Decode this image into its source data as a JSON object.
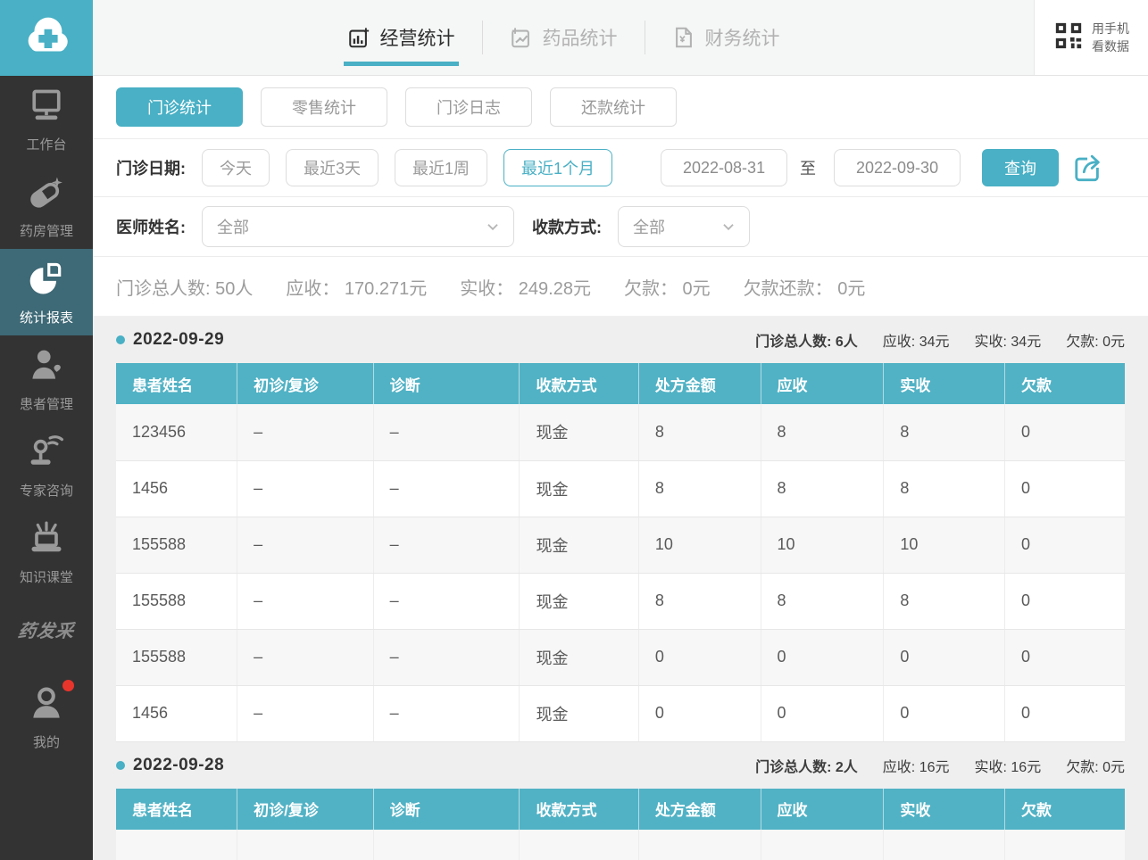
{
  "colors": {
    "accent": "#49b0c5",
    "sidebar_bg": "#333333",
    "sidebar_active_bg": "#3e6976",
    "table_header_bg": "#51b2c5",
    "badge_red": "#e8352c"
  },
  "sidebar": {
    "logo_icon": "cloud-cross",
    "items": [
      {
        "label": "工作台",
        "icon": "workbench",
        "active": false
      },
      {
        "label": "药房管理",
        "icon": "pharmacy",
        "active": false
      },
      {
        "label": "统计报表",
        "icon": "report",
        "active": true
      },
      {
        "label": "患者管理",
        "icon": "patient",
        "active": false
      },
      {
        "label": "专家咨询",
        "icon": "expert",
        "active": false
      },
      {
        "label": "知识课堂",
        "icon": "classroom",
        "active": false
      }
    ],
    "brand": "药发采",
    "profile": {
      "label": "我的",
      "badge": true
    }
  },
  "header": {
    "tabs": [
      {
        "label": "经营统计",
        "icon": "bar-chart",
        "active": true
      },
      {
        "label": "药品统计",
        "icon": "line-chart",
        "active": false
      },
      {
        "label": "财务统计",
        "icon": "finance-doc",
        "active": false
      }
    ],
    "qr_line1": "用手机",
    "qr_line2": "看数据"
  },
  "subtabs": [
    {
      "label": "门诊统计",
      "active": true
    },
    {
      "label": "零售统计",
      "active": false
    },
    {
      "label": "门诊日志",
      "active": false
    },
    {
      "label": "还款统计",
      "active": false
    }
  ],
  "date_filter": {
    "label": "门诊日期:",
    "quick_options": [
      {
        "label": "今天",
        "active": false
      },
      {
        "label": "最近3天",
        "active": false
      },
      {
        "label": "最近1周",
        "active": false
      },
      {
        "label": "最近1个月",
        "active": true
      }
    ],
    "start_date": "2022-08-31",
    "separator": "至",
    "end_date": "2022-09-30",
    "query_label": "查询"
  },
  "filters": {
    "doctor_label": "医师姓名:",
    "doctor_value": "全部",
    "payment_label": "收款方式:",
    "payment_value": "全部"
  },
  "summary": [
    {
      "label": "门诊总人数:",
      "value": "50人"
    },
    {
      "label": "应收：",
      "value": "170.271元"
    },
    {
      "label": "实收：",
      "value": "249.28元"
    },
    {
      "label": "欠款：",
      "value": "0元"
    },
    {
      "label": "欠款还款：",
      "value": "0元"
    }
  ],
  "table": {
    "columns": [
      "患者姓名",
      "初诊/复诊",
      "诊断",
      "收款方式",
      "处方金额",
      "应收",
      "实收",
      "欠款"
    ],
    "col_widths": [
      "12%",
      "13.5%",
      "14.5%",
      "11.8%",
      "12.1%",
      "12.2%",
      "12%",
      "11.9%"
    ]
  },
  "sections": [
    {
      "date": "2022-09-29",
      "stats": [
        {
          "label": "门诊总人数:",
          "value": "6人"
        },
        {
          "label": "应收:",
          "value": "34元"
        },
        {
          "label": "实收:",
          "value": "34元"
        },
        {
          "label": "欠款:",
          "value": "0元"
        }
      ],
      "rows": [
        [
          "123456",
          "–",
          "–",
          "现金",
          "8",
          "8",
          "8",
          "0"
        ],
        [
          "1456",
          "–",
          "–",
          "现金",
          "8",
          "8",
          "8",
          "0"
        ],
        [
          "155588",
          "–",
          "–",
          "现金",
          "10",
          "10",
          "10",
          "0"
        ],
        [
          "155588",
          "–",
          "–",
          "现金",
          "8",
          "8",
          "8",
          "0"
        ],
        [
          "155588",
          "–",
          "–",
          "现金",
          "0",
          "0",
          "0",
          "0"
        ],
        [
          "1456",
          "–",
          "–",
          "现金",
          "0",
          "0",
          "0",
          "0"
        ]
      ]
    },
    {
      "date": "2022-09-28",
      "stats": [
        {
          "label": "门诊总人数:",
          "value": "2人"
        },
        {
          "label": "应收:",
          "value": "16元"
        },
        {
          "label": "实收:",
          "value": "16元"
        },
        {
          "label": "欠款:",
          "value": "0元"
        }
      ],
      "rows": [
        [
          "",
          "",
          "",
          "",
          "",
          "",
          "",
          ""
        ]
      ]
    }
  ]
}
